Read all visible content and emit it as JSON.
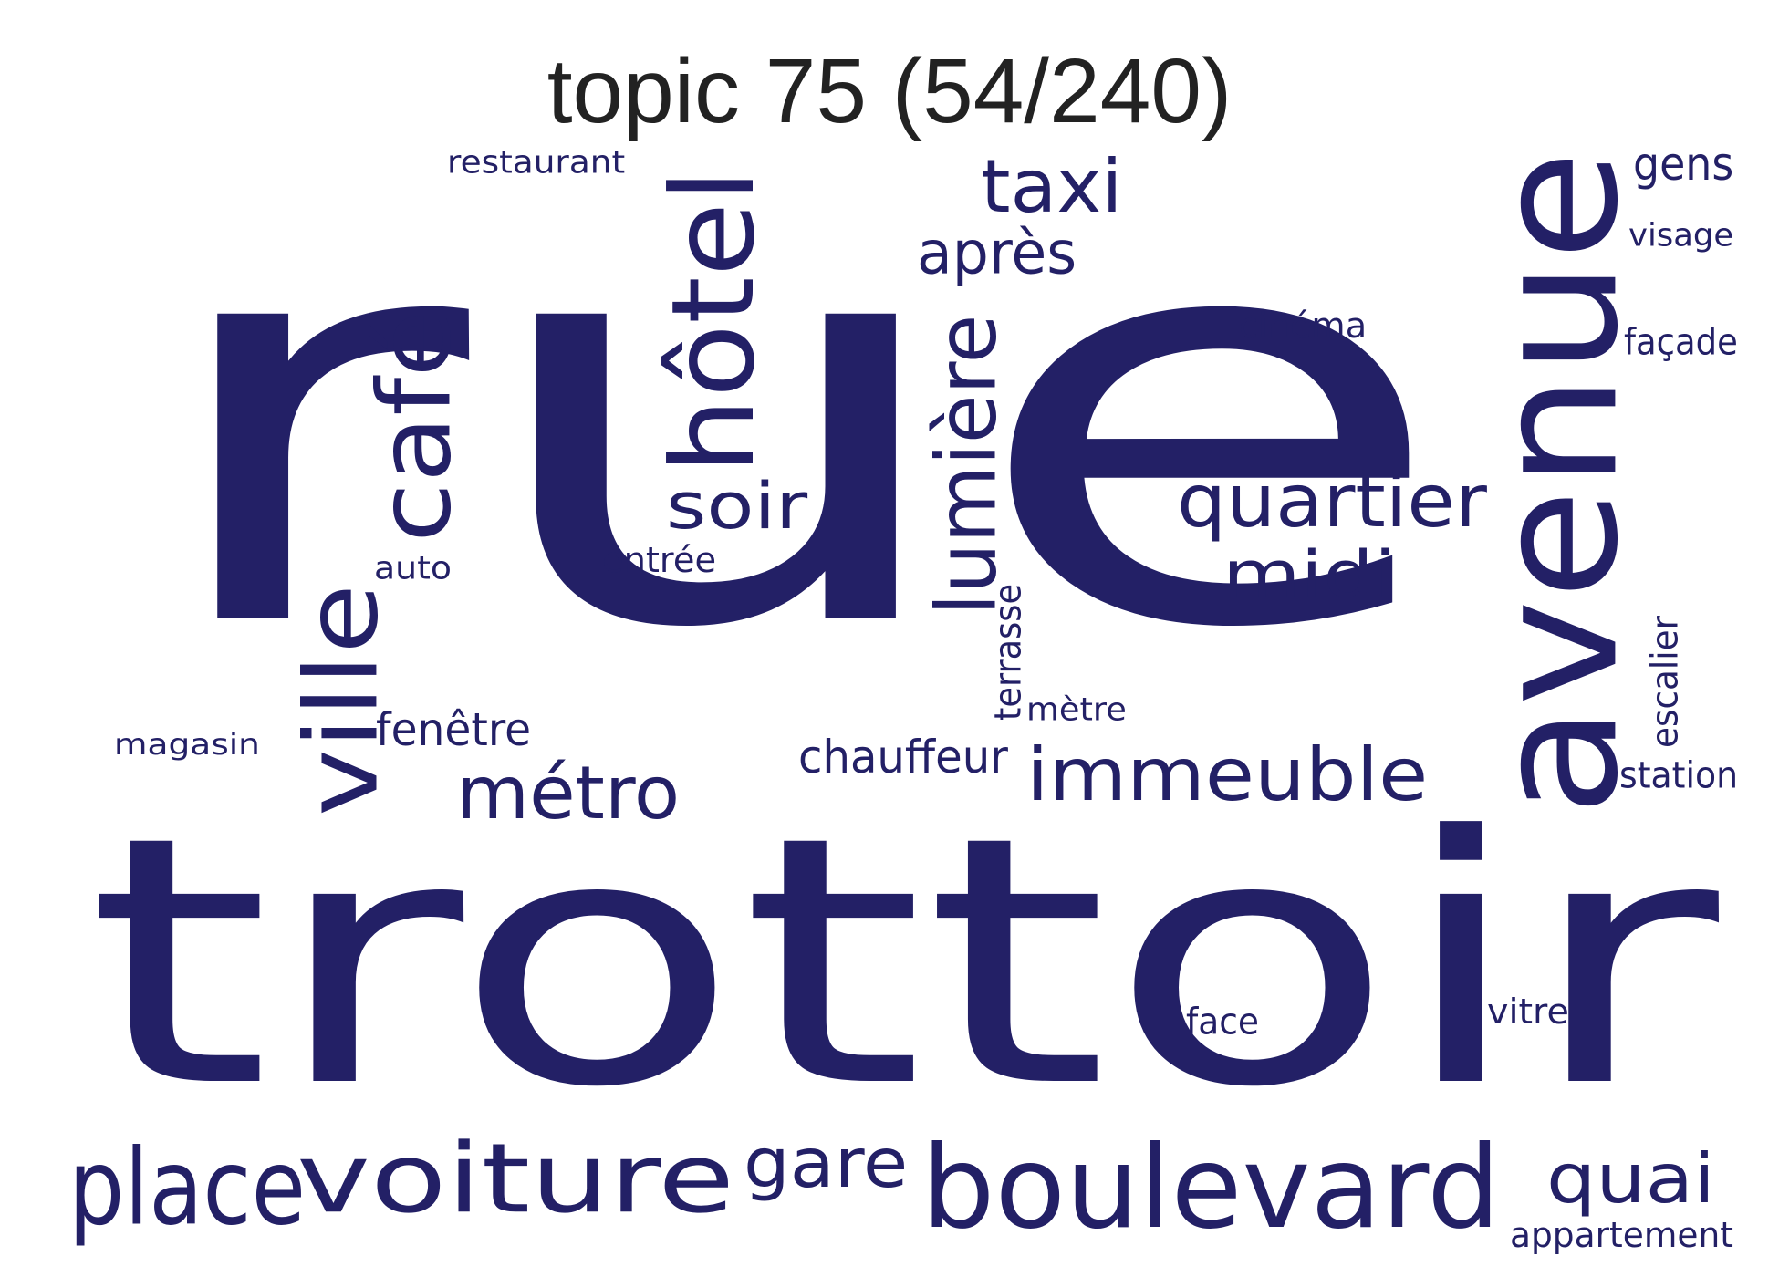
{
  "title": "topic 75 (54/240)",
  "colors": {
    "words": "#232066",
    "title": "#222222",
    "background": "#ffffff"
  },
  "words": [
    {
      "id": "rue",
      "text": "rue"
    },
    {
      "id": "trottoir",
      "text": "trottoir"
    },
    {
      "id": "avenue",
      "text": "avenue"
    },
    {
      "id": "boulevard",
      "text": "boulevard"
    },
    {
      "id": "voiture",
      "text": "voiture"
    },
    {
      "id": "place",
      "text": "place"
    },
    {
      "id": "hotel",
      "text": "hôtel"
    },
    {
      "id": "cafe",
      "text": "café"
    },
    {
      "id": "ville",
      "text": "ville"
    },
    {
      "id": "lumiere",
      "text": "lumière"
    },
    {
      "id": "immeuble",
      "text": "immeuble"
    },
    {
      "id": "quartier",
      "text": "quartier"
    },
    {
      "id": "midi",
      "text": "midi"
    },
    {
      "id": "soir",
      "text": "soir"
    },
    {
      "id": "taxi",
      "text": "taxi"
    },
    {
      "id": "metro",
      "text": "métro"
    },
    {
      "id": "quai",
      "text": "quai"
    },
    {
      "id": "gare",
      "text": "gare"
    },
    {
      "id": "apres",
      "text": "après"
    },
    {
      "id": "chauffeur",
      "text": "chauffeur"
    },
    {
      "id": "fenetre",
      "text": "fenêtre"
    },
    {
      "id": "gens",
      "text": "gens"
    },
    {
      "id": "restaurant",
      "text": "restaurant"
    },
    {
      "id": "visage",
      "text": "visage"
    },
    {
      "id": "cinema",
      "text": "cinéma"
    },
    {
      "id": "facade",
      "text": "façade"
    },
    {
      "id": "entree",
      "text": "entrée"
    },
    {
      "id": "auto",
      "text": "auto"
    },
    {
      "id": "terrasse",
      "text": "terrasse"
    },
    {
      "id": "metre",
      "text": "mètre"
    },
    {
      "id": "magasin",
      "text": "magasin"
    },
    {
      "id": "escalier",
      "text": "escalier"
    },
    {
      "id": "station",
      "text": "station"
    },
    {
      "id": "face",
      "text": "face"
    },
    {
      "id": "vitre",
      "text": "vitre"
    },
    {
      "id": "appartement",
      "text": "appartement"
    }
  ]
}
